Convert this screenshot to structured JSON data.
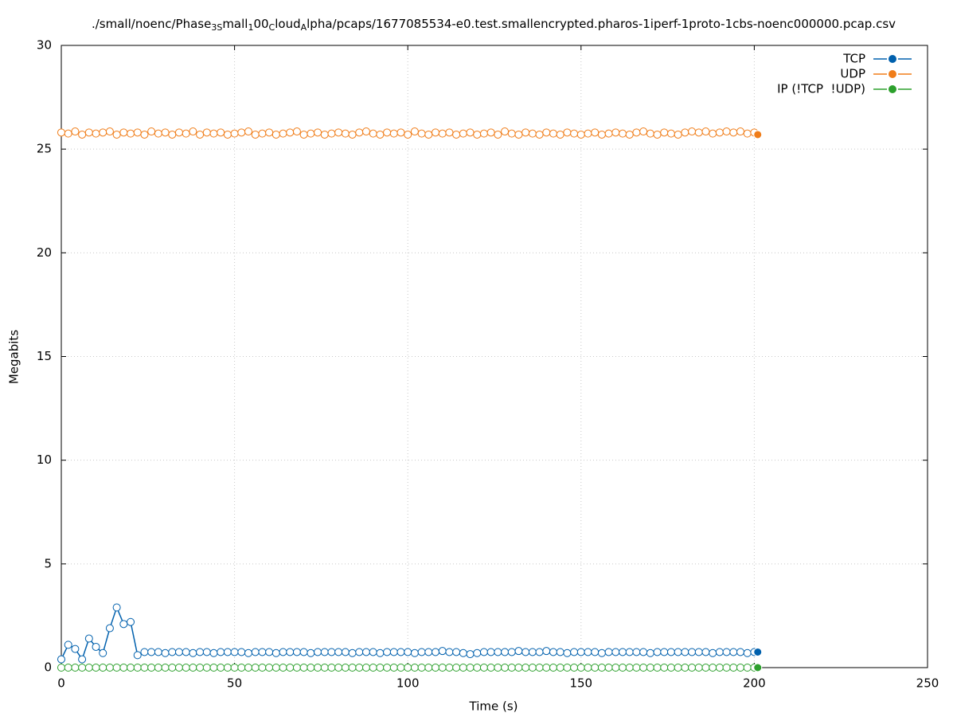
{
  "chart_data": {
    "type": "line",
    "title_parts": [
      {
        "text": "./small/noenc/Phase"
      },
      {
        "text": "3S",
        "sub": true
      },
      {
        "text": "mall"
      },
      {
        "text": "1",
        "sub": true
      },
      {
        "text": "00"
      },
      {
        "text": "C",
        "sub": true
      },
      {
        "text": "loud"
      },
      {
        "text": "A",
        "sub": true
      },
      {
        "text": "lpha/pcaps/1677085534-e0.test.smallencrypted.pharos-1iperf-1proto-1cbs-noenc000000.pcap.csv"
      }
    ],
    "x_label": "Time (s)",
    "y_label": "Megabits",
    "xlim": [
      0,
      250
    ],
    "ylim": [
      0,
      30
    ],
    "xticks": [
      0,
      50,
      100,
      150,
      200,
      250
    ],
    "yticks": [
      0,
      5,
      10,
      15,
      20,
      25,
      30
    ],
    "grid": true,
    "legend": "top-right",
    "x": [
      0,
      2,
      4,
      6,
      8,
      10,
      12,
      14,
      16,
      18,
      20,
      22,
      24,
      26,
      28,
      30,
      32,
      34,
      36,
      38,
      40,
      42,
      44,
      46,
      48,
      50,
      52,
      54,
      56,
      58,
      60,
      62,
      64,
      66,
      68,
      70,
      72,
      74,
      76,
      78,
      80,
      82,
      84,
      86,
      88,
      90,
      92,
      94,
      96,
      98,
      100,
      102,
      104,
      106,
      108,
      110,
      112,
      114,
      116,
      118,
      120,
      122,
      124,
      126,
      128,
      130,
      132,
      134,
      136,
      138,
      140,
      142,
      144,
      146,
      148,
      150,
      152,
      154,
      156,
      158,
      160,
      162,
      164,
      166,
      168,
      170,
      172,
      174,
      176,
      178,
      180,
      182,
      184,
      186,
      188,
      190,
      192,
      194,
      196,
      198,
      200,
      201
    ],
    "series": [
      {
        "name": "TCP",
        "color": "#0060ad",
        "values": [
          0.4,
          1.1,
          0.9,
          0.4,
          1.4,
          1.0,
          0.7,
          1.9,
          2.9,
          2.1,
          2.2,
          0.6,
          0.75,
          0.75,
          0.75,
          0.7,
          0.75,
          0.75,
          0.75,
          0.7,
          0.75,
          0.75,
          0.7,
          0.75,
          0.75,
          0.75,
          0.75,
          0.7,
          0.75,
          0.75,
          0.75,
          0.7,
          0.75,
          0.75,
          0.75,
          0.75,
          0.7,
          0.75,
          0.75,
          0.75,
          0.75,
          0.75,
          0.7,
          0.75,
          0.75,
          0.75,
          0.7,
          0.75,
          0.75,
          0.75,
          0.75,
          0.7,
          0.75,
          0.75,
          0.75,
          0.8,
          0.75,
          0.75,
          0.7,
          0.65,
          0.7,
          0.75,
          0.75,
          0.75,
          0.75,
          0.75,
          0.8,
          0.75,
          0.75,
          0.75,
          0.8,
          0.75,
          0.75,
          0.7,
          0.75,
          0.75,
          0.75,
          0.75,
          0.7,
          0.75,
          0.75,
          0.75,
          0.75,
          0.75,
          0.75,
          0.7,
          0.75,
          0.75,
          0.75,
          0.75,
          0.75,
          0.75,
          0.75,
          0.75,
          0.7,
          0.75,
          0.75,
          0.75,
          0.75,
          0.7,
          0.75,
          0.75
        ]
      },
      {
        "name": "UDP",
        "color": "#f07d19",
        "values": [
          25.8,
          25.75,
          25.85,
          25.7,
          25.8,
          25.75,
          25.8,
          25.85,
          25.7,
          25.8,
          25.75,
          25.8,
          25.7,
          25.85,
          25.75,
          25.8,
          25.7,
          25.8,
          25.75,
          25.85,
          25.7,
          25.8,
          25.75,
          25.8,
          25.7,
          25.75,
          25.8,
          25.85,
          25.7,
          25.75,
          25.8,
          25.7,
          25.75,
          25.8,
          25.85,
          25.7,
          25.75,
          25.8,
          25.7,
          25.75,
          25.8,
          25.75,
          25.7,
          25.8,
          25.85,
          25.75,
          25.7,
          25.8,
          25.75,
          25.8,
          25.7,
          25.85,
          25.75,
          25.7,
          25.8,
          25.75,
          25.8,
          25.7,
          25.75,
          25.8,
          25.7,
          25.75,
          25.8,
          25.7,
          25.85,
          25.75,
          25.7,
          25.8,
          25.75,
          25.7,
          25.8,
          25.75,
          25.7,
          25.8,
          25.75,
          25.7,
          25.75,
          25.8,
          25.7,
          25.75,
          25.8,
          25.75,
          25.7,
          25.8,
          25.85,
          25.75,
          25.7,
          25.8,
          25.75,
          25.7,
          25.8,
          25.85,
          25.8,
          25.85,
          25.75,
          25.8,
          25.85,
          25.8,
          25.85,
          25.75,
          25.8,
          25.7
        ]
      },
      {
        "name": "IP (!TCP  !UDP)",
        "color": "#2ca02c",
        "values": [
          0,
          0,
          0,
          0,
          0,
          0,
          0,
          0,
          0,
          0,
          0,
          0,
          0,
          0,
          0,
          0,
          0,
          0,
          0,
          0,
          0,
          0,
          0,
          0,
          0,
          0,
          0,
          0,
          0,
          0,
          0,
          0,
          0,
          0,
          0,
          0,
          0,
          0,
          0,
          0,
          0,
          0,
          0,
          0,
          0,
          0,
          0,
          0,
          0,
          0,
          0,
          0,
          0,
          0,
          0,
          0,
          0,
          0,
          0,
          0,
          0,
          0,
          0,
          0,
          0,
          0,
          0,
          0,
          0,
          0,
          0,
          0,
          0,
          0,
          0,
          0,
          0,
          0,
          0,
          0,
          0,
          0,
          0,
          0,
          0,
          0,
          0,
          0,
          0,
          0,
          0,
          0,
          0,
          0,
          0,
          0,
          0,
          0,
          0,
          0,
          0,
          0
        ]
      }
    ]
  }
}
